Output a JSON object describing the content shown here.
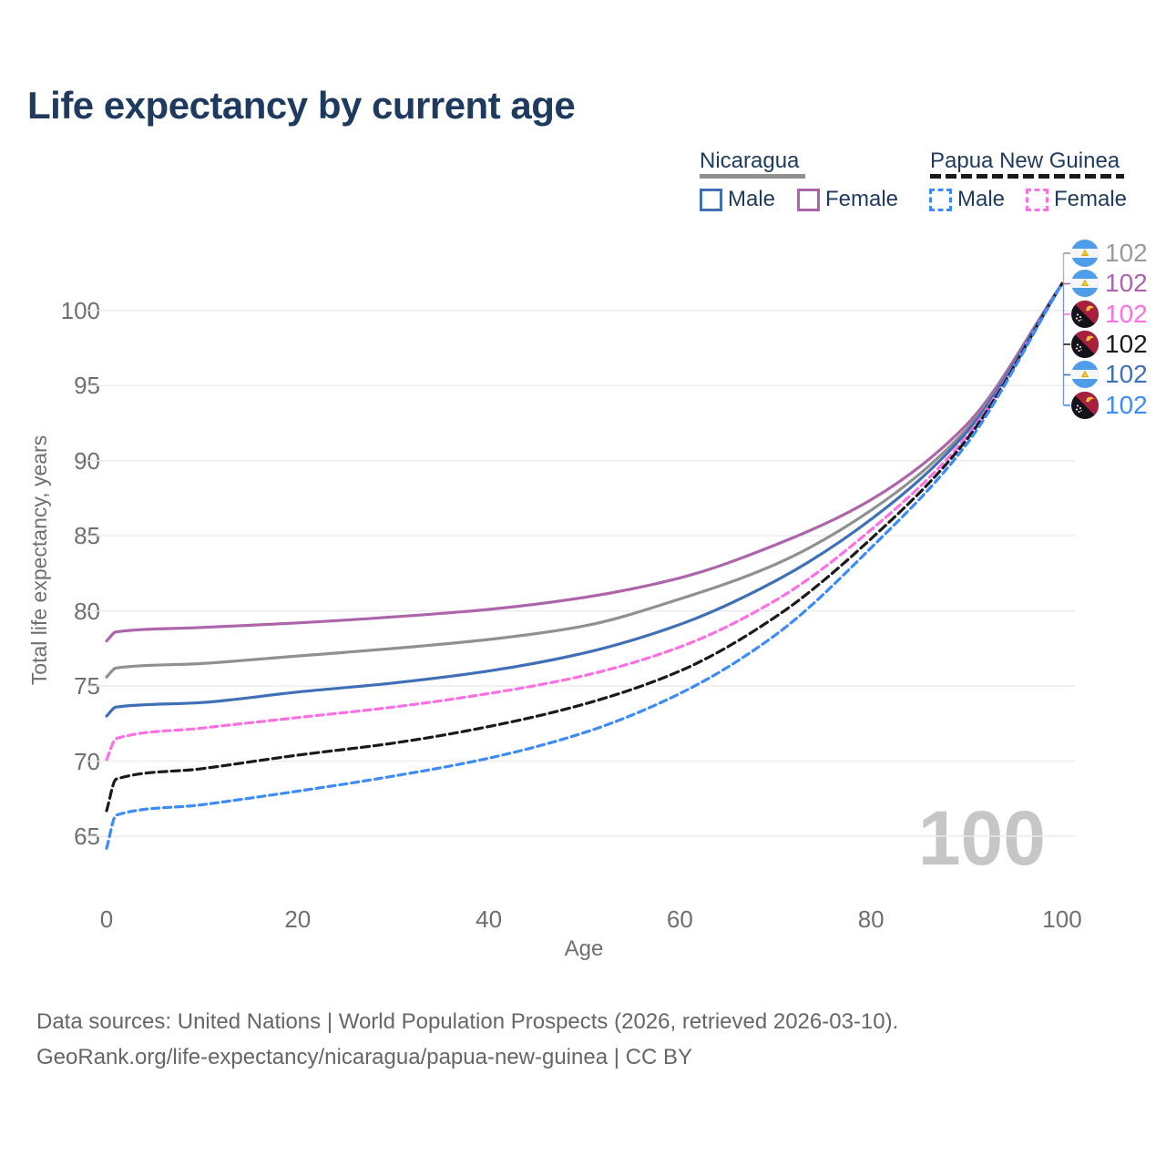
{
  "title": "Life expectancy by current age",
  "legend": {
    "groups": [
      {
        "label": "Nicaragua",
        "line": "solid",
        "color": "#909090",
        "items": [
          {
            "label": "Male",
            "color": "#3f70b7",
            "dashed": false
          },
          {
            "label": "Female",
            "color": "#ad64ab",
            "dashed": false
          }
        ]
      },
      {
        "label": "Papua New Guinea",
        "line": "dashed",
        "color": "#1a1a1a",
        "items": [
          {
            "label": "Male",
            "color": "#3d8bf8",
            "dashed": true
          },
          {
            "label": "Female",
            "color": "#fc70e4",
            "dashed": true
          }
        ]
      }
    ]
  },
  "age_marker": "100",
  "chart_data": {
    "type": "line",
    "title": "Life expectancy by current age",
    "xlabel": "Age",
    "ylabel": "Total life expectancy, years",
    "xlim": [
      0,
      100
    ],
    "ylim": [
      63,
      103
    ],
    "xticks": [
      0,
      20,
      40,
      60,
      80,
      100
    ],
    "yticks": [
      65,
      70,
      75,
      80,
      85,
      90,
      95,
      100
    ],
    "grid": "horizontal-only",
    "legend_position": "top-right",
    "x": [
      0,
      1,
      10,
      20,
      30,
      40,
      50,
      60,
      70,
      80,
      90,
      100
    ],
    "series": [
      {
        "name": "Nicaragua Female",
        "country": "Nicaragua",
        "sex": "Female",
        "color": "#ad64ab",
        "line": "solid",
        "dasharray": "",
        "values": [
          78.0,
          78.6,
          78.9,
          79.2,
          79.6,
          80.1,
          80.9,
          82.2,
          84.4,
          87.4,
          92.4,
          101.8
        ]
      },
      {
        "name": "Nicaragua Both sexes",
        "country": "Nicaragua",
        "sex": "Both",
        "color": "#909090",
        "line": "solid",
        "dasharray": "",
        "values": [
          75.6,
          76.2,
          76.5,
          77.0,
          77.5,
          78.1,
          79.0,
          80.8,
          83.1,
          86.7,
          92.1,
          101.8
        ]
      },
      {
        "name": "Nicaragua Male",
        "country": "Nicaragua",
        "sex": "Male",
        "color": "#3f70b7",
        "line": "solid",
        "dasharray": "",
        "values": [
          73.0,
          73.6,
          73.9,
          74.6,
          75.2,
          76.0,
          77.2,
          79.1,
          82.0,
          86.1,
          91.9,
          101.8
        ]
      },
      {
        "name": "Papua New Guinea Female",
        "country": "Papua New Guinea",
        "sex": "Female",
        "color": "#fc70e4",
        "line": "dashed",
        "dasharray": "8 5",
        "values": [
          70.1,
          71.5,
          72.2,
          72.9,
          73.6,
          74.5,
          75.7,
          77.6,
          80.7,
          85.4,
          91.6,
          101.8
        ]
      },
      {
        "name": "Papua New Guinea Both sexes",
        "country": "Papua New Guinea",
        "sex": "Both",
        "color": "#1a1a1a",
        "line": "dashed",
        "dasharray": "9 5",
        "values": [
          66.7,
          68.8,
          69.5,
          70.4,
          71.2,
          72.3,
          73.8,
          76.0,
          79.6,
          84.8,
          91.4,
          101.8
        ]
      },
      {
        "name": "Papua New Guinea Male",
        "country": "Papua New Guinea",
        "sex": "Male",
        "color": "#3d8bf8",
        "line": "dashed",
        "dasharray": "8 5",
        "values": [
          64.2,
          66.4,
          67.1,
          68.0,
          69.0,
          70.2,
          71.9,
          74.5,
          78.4,
          84.2,
          91.1,
          101.8
        ]
      }
    ],
    "end_labels": [
      {
        "value": "102",
        "flag": "nicaragua",
        "color": "#9a9a9a",
        "series": "Nicaragua Both sexes"
      },
      {
        "value": "102",
        "flag": "nicaragua",
        "color": "#ad64ab",
        "series": "Nicaragua Female"
      },
      {
        "value": "102",
        "flag": "papua-new-guinea",
        "color": "#fc70e4",
        "series": "Papua New Guinea Female"
      },
      {
        "value": "102",
        "flag": "papua-new-guinea",
        "color": "#1a1a1a",
        "series": "Papua New Guinea Both sexes"
      },
      {
        "value": "102",
        "flag": "nicaragua",
        "color": "#3f70b7",
        "series": "Nicaragua Male"
      },
      {
        "value": "102",
        "flag": "papua-new-guinea",
        "color": "#3d8bf8",
        "series": "Papua New Guinea Male"
      }
    ]
  },
  "footer": {
    "line1": "Data sources: United Nations | World Population Prospects (2026, retrieved 2026-03-10).",
    "line2": "GeoRank.org/life-expectancy/nicaragua/papua-new-guinea | CC BY"
  }
}
